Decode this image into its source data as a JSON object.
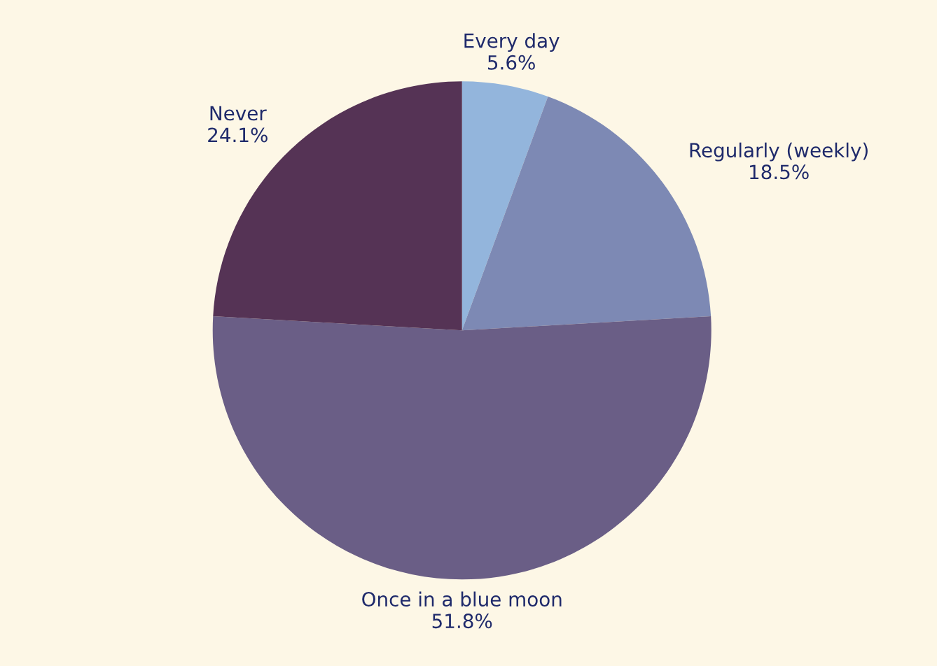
{
  "chart_data": {
    "type": "pie",
    "categories": [
      "Every day",
      "Regularly (weekly)",
      "Once in a blue moon",
      "Never"
    ],
    "values": [
      5.6,
      18.5,
      51.8,
      24.1
    ],
    "colors": [
      "#93b5dc",
      "#7d89b4",
      "#6a5e86",
      "#553355"
    ],
    "value_labels": [
      "5.6%",
      "18.5%",
      "51.8%",
      "24.1%"
    ],
    "legend": false
  }
}
